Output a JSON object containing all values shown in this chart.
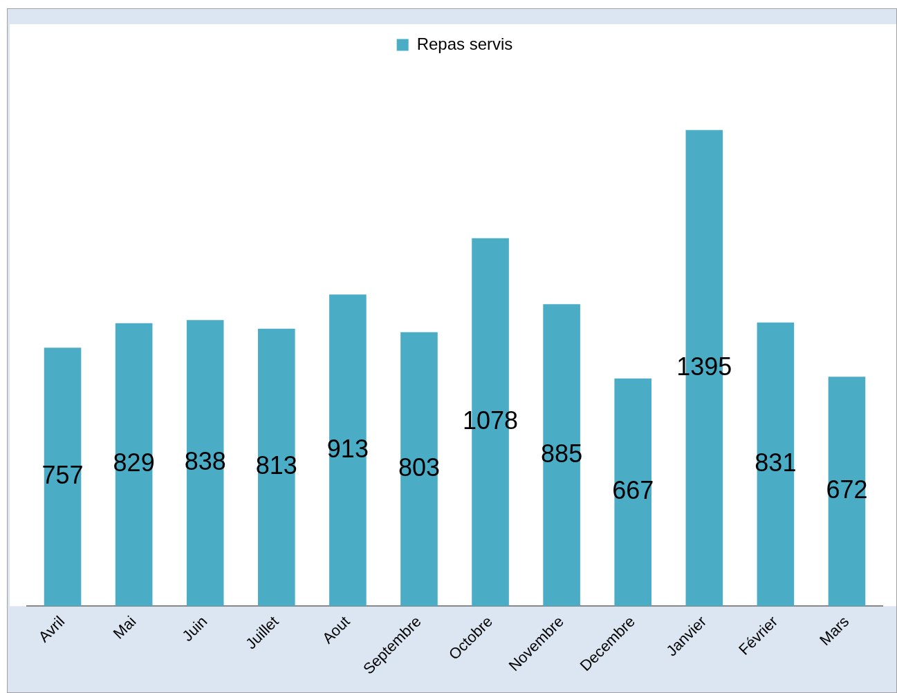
{
  "chart_data": {
    "type": "bar",
    "categories": [
      "Avril",
      "Mai",
      "Juin",
      "Juillet",
      "Aout",
      "Septembre",
      "Octobre",
      "Novembre",
      "Decembre",
      "Janvier",
      "Février",
      "Mars"
    ],
    "series": [
      {
        "name": "Repas servis",
        "color": "#4bacc6",
        "values": [
          757,
          829,
          838,
          813,
          913,
          803,
          1078,
          885,
          667,
          1395,
          831,
          672
        ]
      }
    ],
    "data_labels": true,
    "legend": "top",
    "grid": false,
    "tick_labels": "x"
  }
}
